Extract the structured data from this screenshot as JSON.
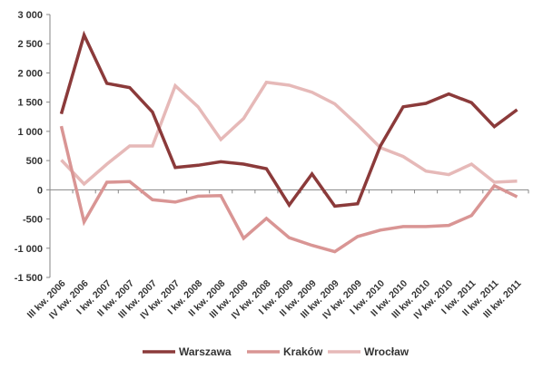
{
  "chart_data": {
    "type": "line",
    "title": "",
    "xlabel": "",
    "ylabel": "",
    "ylim": [
      -1500,
      3000
    ],
    "y_ticks": [
      3000,
      2500,
      2000,
      1500,
      1000,
      500,
      0,
      -500,
      -1000,
      -1500
    ],
    "y_tick_labels": [
      "3 000",
      "2 500",
      "2 000",
      "1 500",
      "1 000",
      "500",
      "0",
      "-500",
      "-1 000",
      "-1 500"
    ],
    "grid": false,
    "legend_position": "bottom",
    "categories": [
      "III kw. 2006",
      "IV kw. 2006",
      "I kw. 2007",
      "II kw. 2007",
      "III kw. 2007",
      "IV kw. 2007",
      "I kw. 2008",
      "II kw. 2008",
      "III kw. 2008",
      "IV kw. 2008",
      "I kw. 2009",
      "II kw. 2009",
      "III kw. 2009",
      "IV kw. 2009",
      "I kw. 2010",
      "II kw. 2010",
      "III kw. 2010",
      "IV kw. 2010",
      "I kw. 2011",
      "II kw. 2011",
      "III kw. 2011"
    ],
    "series": [
      {
        "name": "Warszawa",
        "color": "#8b3a3a",
        "values": [
          1300,
          2650,
          1820,
          1750,
          1330,
          380,
          420,
          480,
          440,
          360,
          -260,
          270,
          -280,
          -240,
          750,
          1420,
          1480,
          1640,
          1490,
          1080,
          1370
        ]
      },
      {
        "name": "Kraków",
        "color": "#d99594",
        "values": [
          1090,
          -550,
          130,
          140,
          -170,
          -210,
          -110,
          -100,
          -830,
          -490,
          -820,
          -950,
          -1060,
          -800,
          -690,
          -630,
          -630,
          -610,
          -440,
          70,
          -120
        ]
      },
      {
        "name": "Wrocław",
        "color": "#e6b9b8",
        "values": [
          510,
          100,
          440,
          750,
          750,
          1780,
          1420,
          860,
          1220,
          1840,
          1790,
          1670,
          1470,
          1110,
          720,
          570,
          320,
          260,
          440,
          130,
          150
        ]
      }
    ]
  }
}
